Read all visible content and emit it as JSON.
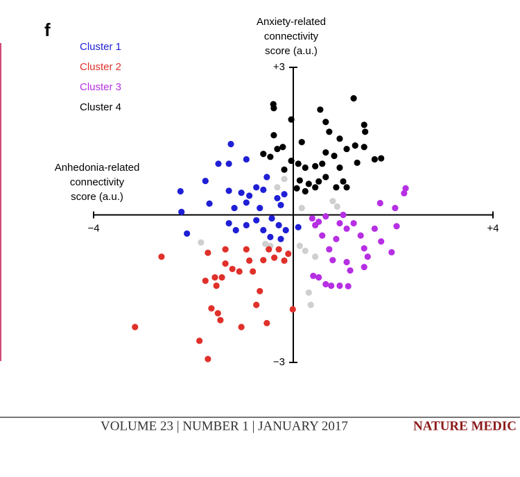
{
  "panel_label": "f",
  "chart_data": {
    "type": "scatter",
    "y_label": [
      "Anxiety-related",
      "connectivity",
      "score (a.u.)"
    ],
    "x_label": [
      "Anhedonia-related",
      "connectivity",
      "score (a.u.)"
    ],
    "xlim": [
      -4,
      4
    ],
    "ylim": [
      -3,
      3
    ],
    "xticks": [
      {
        "value": -4,
        "label": "−4"
      },
      {
        "value": 4,
        "label": "+4"
      }
    ],
    "yticks": [
      {
        "value": 3,
        "label": "+3"
      },
      {
        "value": -3,
        "label": "−3"
      }
    ],
    "legend": "top-left",
    "series": [
      {
        "name": "Cluster 1",
        "color": "#1f1fd6",
        "x": [
          -1.25,
          -1.5,
          -1.29,
          -0.94,
          -1.76,
          -2.26,
          -2.24,
          -2.13,
          -1.68,
          -1.29,
          -1.04,
          -0.88,
          -0.74,
          -0.6,
          -1.18,
          -0.94,
          -0.67,
          -0.32,
          -0.18,
          -0.25,
          -1.29,
          -1.15,
          -0.94,
          -0.74,
          -0.6,
          -0.43,
          -0.29,
          -0.15,
          0.1,
          -0.46,
          -0.25,
          -0.53
        ],
        "y": [
          1.44,
          1.04,
          1.04,
          1.13,
          0.69,
          0.48,
          0.06,
          -0.38,
          0.23,
          0.49,
          0.45,
          0.39,
          0.56,
          0.51,
          0.14,
          0.25,
          0.14,
          0.34,
          0.42,
          0.2,
          -0.17,
          -0.31,
          -0.21,
          -0.11,
          -0.31,
          -0.07,
          -0.21,
          -0.31,
          -0.25,
          -0.45,
          -0.49,
          0.77
        ]
      },
      {
        "name": "Cluster 2",
        "color": "#e0302a",
        "x": [
          -2.64,
          -3.17,
          -1.88,
          -1.71,
          -1.76,
          -1.57,
          -1.71,
          -1.36,
          -1.36,
          -1.22,
          -1.43,
          -1.54,
          -1.64,
          -1.51,
          -1.46,
          -1.04,
          -0.94,
          -0.81,
          -0.74,
          -0.67,
          -0.6,
          -0.53,
          -0.49,
          -0.38,
          -0.29,
          -0.18,
          -0.1,
          -0.01,
          -0.88,
          -1.08
        ],
        "y": [
          -0.85,
          -2.28,
          -2.56,
          -2.93,
          -1.34,
          -1.27,
          -0.77,
          -0.7,
          -0.99,
          -1.1,
          -1.27,
          -1.44,
          -1.9,
          -2,
          -2.14,
          -2.28,
          -0.7,
          -1.15,
          -1.83,
          -1.55,
          -0.92,
          -2.2,
          -0.7,
          -0.87,
          -0.7,
          -0.93,
          -0.79,
          -1.92,
          -0.93,
          -1.15
        ]
      },
      {
        "name": "Cluster 3",
        "color": "#b62fe3",
        "x": [
          2.25,
          2.22,
          1.74,
          2.04,
          2.07,
          1.97,
          1.76,
          1.63,
          1.35,
          1.42,
          1.21,
          1.07,
          1,
          0.93,
          0.86,
          0.79,
          0.72,
          0.58,
          0.51,
          0.38,
          0.44,
          0.65,
          0.76,
          0.65,
          0.51,
          0.4,
          1.07,
          1.14,
          0.93,
          1.1,
          1.42,
          1.49
        ],
        "y": [
          0.54,
          0.44,
          0.24,
          0.14,
          -0.23,
          -0.76,
          -0.54,
          -0.28,
          -0.42,
          -0.68,
          -0.17,
          -0.28,
          0,
          -0.17,
          -0.49,
          -0.92,
          -0.7,
          -0.42,
          -0.14,
          -0.07,
          -0.21,
          -0.03,
          -1.44,
          -1.41,
          -1.27,
          -1.24,
          -0.96,
          -1.13,
          -1.44,
          -1.45,
          -1.06,
          -0.85
        ]
      },
      {
        "name": "Cluster 4",
        "color": "#000000",
        "x": [
          -0.4,
          -0.39,
          -0.04,
          0.54,
          0.65,
          1.21,
          1.42,
          1.44,
          0.72,
          0.17,
          -0.39,
          -0.32,
          -0.6,
          -0.46,
          -0.21,
          -0.18,
          -0.04,
          0.1,
          0.24,
          0.44,
          0.58,
          0.65,
          0.82,
          0.93,
          1.07,
          1.24,
          1.42,
          1.63,
          1.76,
          1.28,
          0.93,
          0.65,
          0.51,
          0.31,
          0.13,
          0.07,
          0.24,
          1.07,
          1,
          0.86,
          0.44
        ],
        "y": [
          2.25,
          2.17,
          1.94,
          2.14,
          1.89,
          2.37,
          1.83,
          1.69,
          1.69,
          1.48,
          1.62,
          1.34,
          1.24,
          1.18,
          1.38,
          0.92,
          1.1,
          1.04,
          0.96,
          0.99,
          1.04,
          1.27,
          1.2,
          1.55,
          1.34,
          1.41,
          1.38,
          1.13,
          1.15,
          1.06,
          0.96,
          0.77,
          0.68,
          0.63,
          0.7,
          0.54,
          0.48,
          0.56,
          0.68,
          0.56,
          0.56
        ]
      },
      {
        "color": "#cfcfcf",
        "x": [
          -0.32,
          -0.18,
          -1.85,
          -0.56,
          -0.46,
          0.13,
          0.24,
          0.44,
          0.31,
          0.35,
          0.79,
          0.88,
          0.17
        ],
        "y": [
          0.56,
          0.73,
          -0.56,
          -0.59,
          -0.63,
          -0.63,
          -0.73,
          -0.85,
          -1.58,
          -1.83,
          0.28,
          0.17,
          0.14
        ]
      }
    ]
  },
  "footer": {
    "issue": "VOLUME 23 | NUMBER 1 | JANUARY 2017",
    "journal": "NATURE MEDIC"
  }
}
